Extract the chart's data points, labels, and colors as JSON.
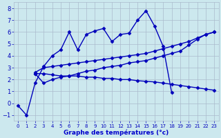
{
  "lines": [
    {
      "x": [
        0,
        1,
        2,
        3,
        4,
        5,
        6,
        7,
        8,
        9,
        10,
        11,
        12,
        13,
        14,
        15,
        16,
        17,
        18
      ],
      "y": [
        -0.2,
        -1.0,
        1.7,
        3.1,
        4.0,
        4.5,
        6.0,
        4.5,
        5.8,
        6.1,
        6.3,
        5.2,
        5.8,
        5.9,
        7.0,
        7.8,
        6.5,
        4.8,
        0.9
      ]
    },
    {
      "x": [
        2,
        3,
        4,
        5,
        6,
        7,
        8,
        9,
        10,
        11,
        12,
        13,
        14,
        15,
        16,
        17,
        18,
        19,
        20,
        21,
        22,
        23
      ],
      "y": [
        2.5,
        2.5,
        2.4,
        2.3,
        2.3,
        2.3,
        2.2,
        2.2,
        2.1,
        2.1,
        2.0,
        2.0,
        1.9,
        1.85,
        1.8,
        1.7,
        1.6,
        1.5,
        1.4,
        1.3,
        1.2,
        1.1
      ]
    },
    {
      "x": [
        2,
        3,
        4,
        5,
        6,
        7,
        8,
        9,
        10,
        11,
        12,
        13,
        14,
        15,
        16,
        17,
        18,
        19,
        20,
        21,
        22,
        23
      ],
      "y": [
        2.5,
        1.7,
        2.0,
        2.2,
        2.3,
        2.5,
        2.7,
        2.8,
        3.0,
        3.1,
        3.2,
        3.4,
        3.5,
        3.6,
        3.8,
        4.0,
        4.2,
        4.4,
        4.9,
        5.4,
        5.8,
        6.0
      ]
    },
    {
      "x": [
        2,
        3,
        4,
        5,
        6,
        7,
        8,
        9,
        10,
        11,
        12,
        13,
        14,
        15,
        16,
        17,
        18,
        19,
        20,
        21,
        22,
        23
      ],
      "y": [
        2.6,
        3.0,
        3.1,
        3.2,
        3.3,
        3.4,
        3.5,
        3.6,
        3.7,
        3.8,
        3.9,
        4.0,
        4.1,
        4.2,
        4.4,
        4.6,
        4.8,
        5.0,
        5.2,
        5.5,
        5.8,
        6.0
      ]
    }
  ],
  "bg_color": "#cce8ee",
  "grid_color": "#aabbcc",
  "line_color": "#0000bb",
  "marker": "D",
  "markersize": 2.5,
  "linewidth": 1.0,
  "xlabel": "Graphe des températures (°c)",
  "xlabel_color": "#0000cc",
  "xlim": [
    -0.5,
    23.5
  ],
  "ylim": [
    -1.5,
    8.5
  ],
  "yticks": [
    -1,
    0,
    1,
    2,
    3,
    4,
    5,
    6,
    7,
    8
  ],
  "xticks": [
    0,
    1,
    2,
    3,
    4,
    5,
    6,
    7,
    8,
    9,
    10,
    11,
    12,
    13,
    14,
    15,
    16,
    17,
    18,
    19,
    20,
    21,
    22,
    23
  ]
}
